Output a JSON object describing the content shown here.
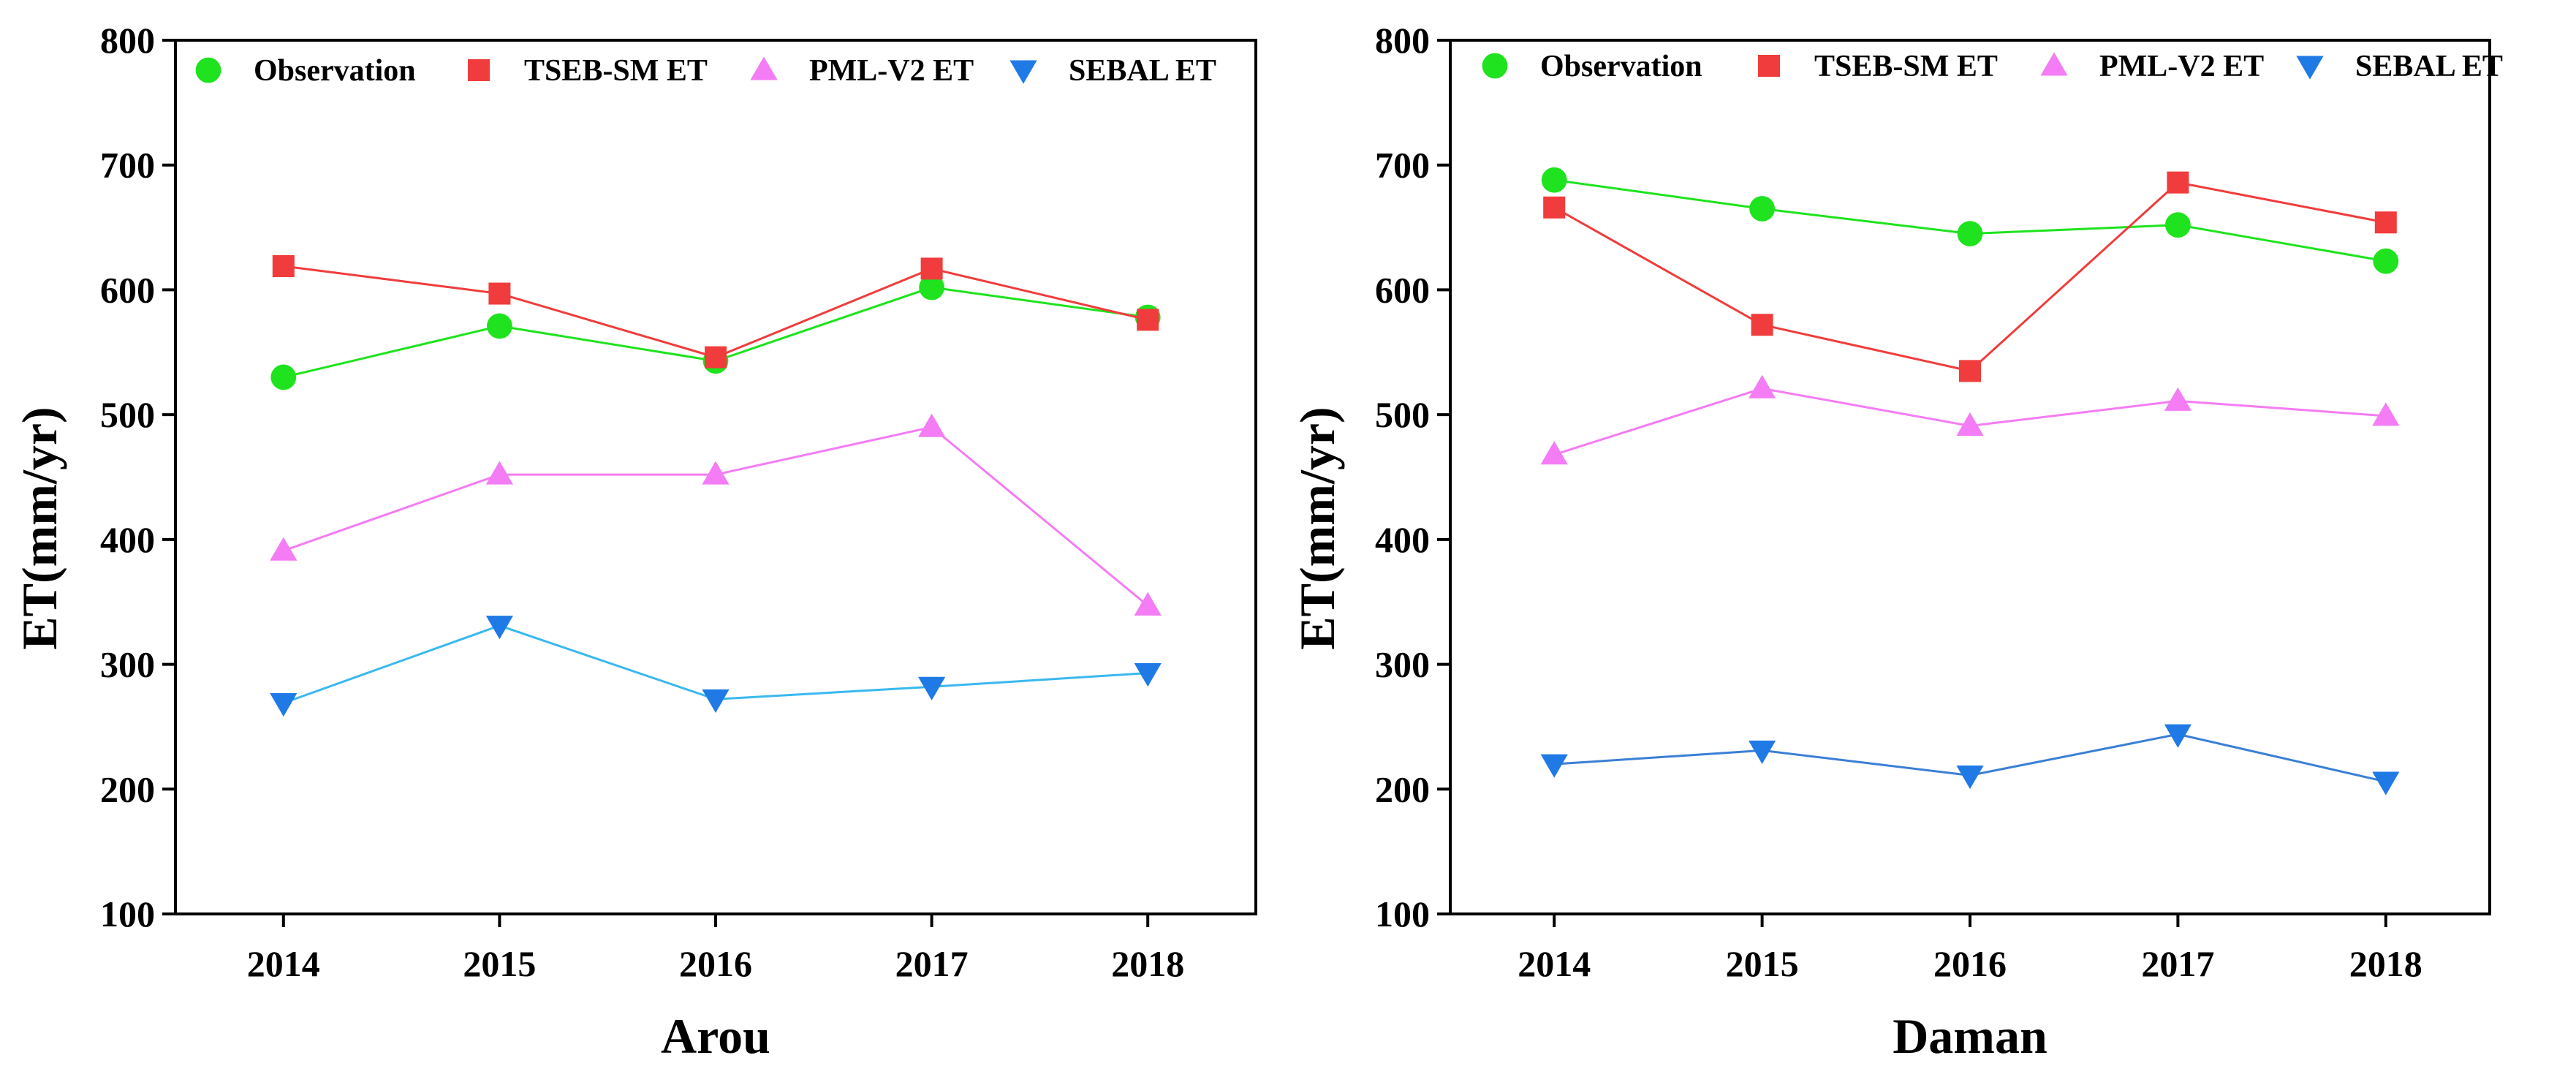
{
  "figure_title": "",
  "legend_entries": [
    {
      "name": "Observation",
      "color": "#1ee31e",
      "marker": "circle"
    },
    {
      "name": "TSEB-SM ET",
      "color": "#f03c3c",
      "marker": "square"
    },
    {
      "name": "PML-V2 ET",
      "color": "#f47cf4",
      "marker": "triangle-up"
    },
    {
      "name": "SEBAL ET",
      "color": "#1f7ae6",
      "marker": "triangle-down"
    }
  ],
  "chart_data": [
    {
      "type": "line",
      "title": "",
      "xlabel": "Arou",
      "ylabel": "ET(mm/yr)",
      "categories": [
        "2014",
        "2015",
        "2016",
        "2017",
        "2018"
      ],
      "ylim": [
        100,
        800
      ],
      "yticks": [
        "100",
        "200",
        "300",
        "400",
        "500",
        "600",
        "700",
        "800"
      ],
      "grid": false,
      "legend_position": "top",
      "series": [
        {
          "name": "Observation",
          "values": [
            530,
            571,
            543,
            602,
            578
          ],
          "color": "#1ee31e",
          "line_color": "#1ee31e",
          "marker": "circle"
        },
        {
          "name": "TSEB-SM ET",
          "values": [
            619,
            597,
            546,
            617,
            576
          ],
          "color": "#f03c3c",
          "line_color": "#f03c3c",
          "marker": "square"
        },
        {
          "name": "PML-V2 ET",
          "values": [
            391,
            452,
            452,
            490,
            347
          ],
          "color": "#f47cf4",
          "line_color": "#f47cf4",
          "marker": "triangle-up"
        },
        {
          "name": "SEBAL ET",
          "values": [
            269,
            331,
            272,
            282,
            293
          ],
          "color": "#1f7ae6",
          "line_color": "#3ab8ef",
          "marker": "triangle-down"
        }
      ]
    },
    {
      "type": "line",
      "title": "",
      "xlabel": "Daman",
      "ylabel": "ET(mm/yr)",
      "categories": [
        "2014",
        "2015",
        "2016",
        "2017",
        "2018"
      ],
      "ylim": [
        100,
        800
      ],
      "yticks": [
        "100",
        "200",
        "300",
        "400",
        "500",
        "600",
        "700",
        "800"
      ],
      "grid": false,
      "legend_position": "top",
      "series": [
        {
          "name": "Observation",
          "values": [
            688,
            665,
            645,
            652,
            623
          ],
          "color": "#1ee31e",
          "line_color": "#1ee31e",
          "marker": "circle"
        },
        {
          "name": "TSEB-SM ET",
          "values": [
            666,
            572,
            535,
            686,
            654
          ],
          "color": "#f03c3c",
          "line_color": "#f03c3c",
          "marker": "square"
        },
        {
          "name": "PML-V2 ET",
          "values": [
            468,
            521,
            491,
            511,
            499
          ],
          "color": "#f47cf4",
          "line_color": "#f47cf4",
          "marker": "triangle-up"
        },
        {
          "name": "SEBAL ET",
          "values": [
            220,
            231,
            211,
            244,
            206
          ],
          "color": "#1f7ae6",
          "line_color": "#3a7fd6",
          "marker": "triangle-down"
        }
      ]
    }
  ]
}
